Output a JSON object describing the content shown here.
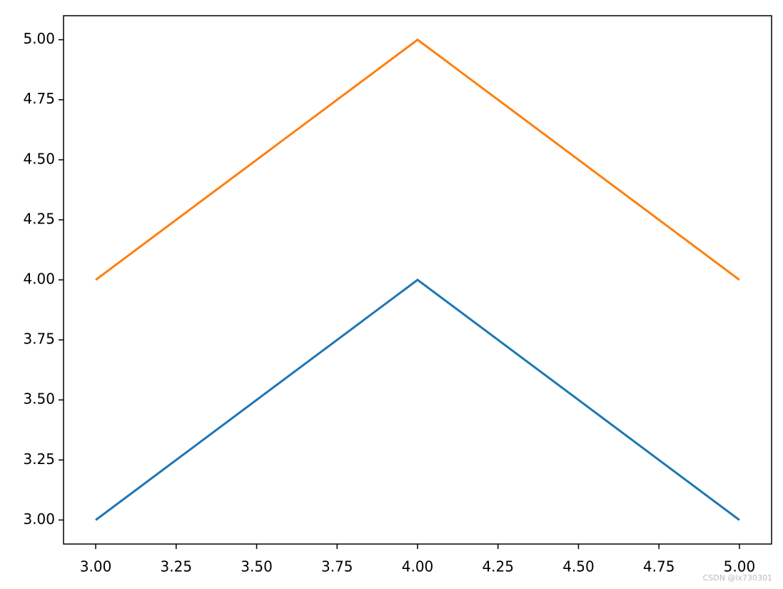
{
  "chart_data": {
    "type": "line",
    "x": [
      3,
      4,
      5
    ],
    "series": [
      {
        "color": "#1f77b4",
        "values": [
          3,
          4,
          3
        ]
      },
      {
        "color": "#ff7f0e",
        "values": [
          4,
          5,
          4
        ]
      }
    ],
    "xlim": [
      2.9,
      5.1
    ],
    "ylim": [
      2.9,
      5.1
    ],
    "xticks": [
      {
        "value": 3,
        "label": "3.00"
      },
      {
        "value": 3.25,
        "label": "3.25"
      },
      {
        "value": 3.5,
        "label": "3.50"
      },
      {
        "value": 3.75,
        "label": "3.75"
      },
      {
        "value": 4,
        "label": "4.00"
      },
      {
        "value": 4.25,
        "label": "4.25"
      },
      {
        "value": 4.5,
        "label": "4.50"
      },
      {
        "value": 4.75,
        "label": "4.75"
      },
      {
        "value": 5,
        "label": "5.00"
      }
    ],
    "yticks": [
      {
        "value": 3,
        "label": "3.00"
      },
      {
        "value": 3.25,
        "label": "3.25"
      },
      {
        "value": 3.5,
        "label": "3.50"
      },
      {
        "value": 3.75,
        "label": "3.75"
      },
      {
        "value": 4,
        "label": "4.00"
      },
      {
        "value": 4.25,
        "label": "4.25"
      },
      {
        "value": 4.5,
        "label": "4.50"
      },
      {
        "value": 4.75,
        "label": "4.75"
      },
      {
        "value": 5,
        "label": "5.00"
      }
    ],
    "grid": false,
    "watermark": "CSDN @lx730301"
  }
}
